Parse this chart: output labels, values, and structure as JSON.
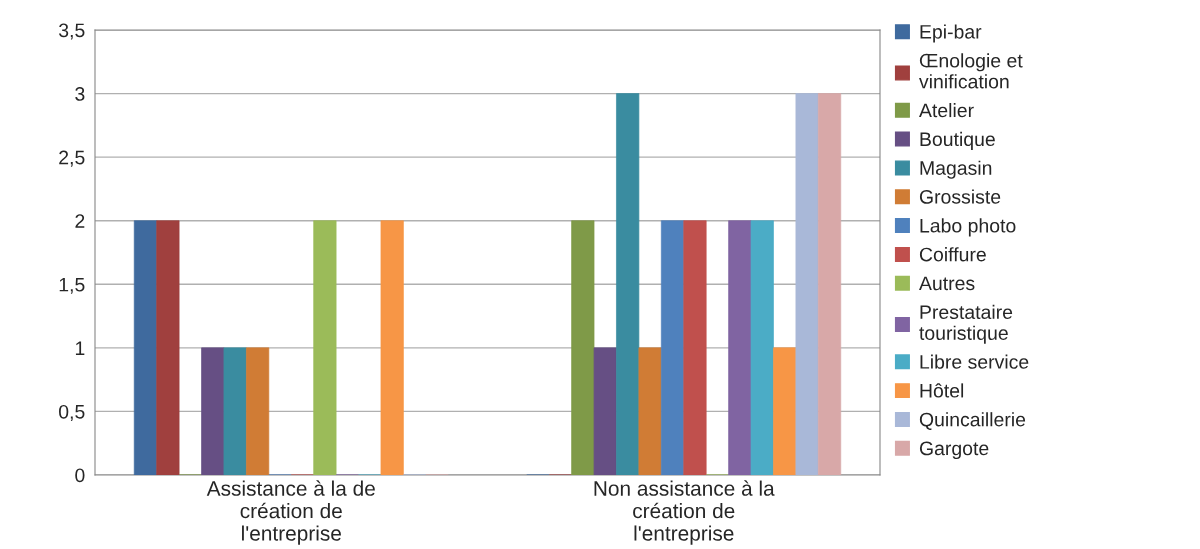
{
  "chart_data": {
    "type": "bar",
    "categories": [
      "Assistance à la de\ncréation de\nl'entreprise",
      "Non assistance à la\ncréation de\nl'entreprise"
    ],
    "series": [
      {
        "name": "Epi-bar",
        "color": "#3f6a9e",
        "values": [
          2,
          0
        ]
      },
      {
        "name": "Œnologie et\nvinification",
        "color": "#a0403e",
        "values": [
          2,
          0
        ]
      },
      {
        "name": "Atelier",
        "color": "#7f9a48",
        "values": [
          0,
          2
        ]
      },
      {
        "name": "Boutique",
        "color": "#664f84",
        "values": [
          1,
          1
        ]
      },
      {
        "name": "Magasin",
        "color": "#3a8ca0",
        "values": [
          1,
          3
        ]
      },
      {
        "name": "Grossiste",
        "color": "#d07c35",
        "values": [
          1,
          1
        ]
      },
      {
        "name": "Labo photo",
        "color": "#4f81bd",
        "values": [
          0,
          2
        ]
      },
      {
        "name": "Coiffure",
        "color": "#c0504d",
        "values": [
          0,
          2
        ]
      },
      {
        "name": "Autres",
        "color": "#9bbb59",
        "values": [
          2,
          0
        ]
      },
      {
        "name": "Prestataire\ntouristique",
        "color": "#8064a2",
        "values": [
          0,
          2
        ]
      },
      {
        "name": "Libre service",
        "color": "#4bacc6",
        "values": [
          0,
          2
        ]
      },
      {
        "name": "Hôtel",
        "color": "#f79646",
        "values": [
          2,
          1
        ]
      },
      {
        "name": "Quincaillerie",
        "color": "#a9b8d8",
        "values": [
          0,
          3
        ]
      },
      {
        "name": "Gargote",
        "color": "#d8a8a8",
        "values": [
          0,
          3
        ]
      }
    ],
    "ylim": [
      0,
      3.5
    ],
    "yticks": [
      0,
      {
        "value": 0.5,
        "label": "0,5"
      },
      1,
      {
        "value": 1.5,
        "label": "1,5"
      },
      2,
      {
        "value": 2.5,
        "label": "2,5"
      },
      3,
      {
        "value": 3.5,
        "label": "3,5"
      }
    ],
    "grid": "y",
    "legend": "right"
  }
}
